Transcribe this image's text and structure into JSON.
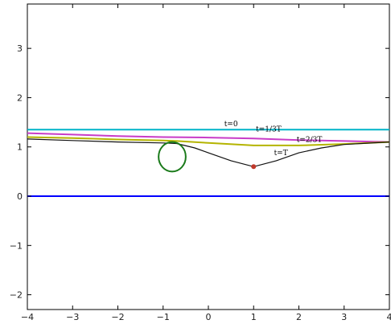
{
  "chart_data": {
    "type": "line",
    "title": "",
    "xlabel": "",
    "ylabel": "",
    "xlim": [
      -4,
      4
    ],
    "ylim": [
      -2.3,
      3.9
    ],
    "xticks": [
      -4,
      -3,
      -2,
      -1,
      0,
      1,
      2,
      3,
      4
    ],
    "yticks": [
      -2,
      -1,
      0,
      1,
      2,
      3
    ],
    "grid": false,
    "series": [
      {
        "label": "t=0",
        "color": "#00b4c8",
        "x": [
          -4,
          4
        ],
        "y": [
          1.35,
          1.35
        ]
      },
      {
        "label": "t=1/3T",
        "color": "#c83cc8",
        "x": [
          -4,
          -3,
          -2,
          -1,
          0,
          1,
          2,
          3,
          4
        ],
        "y": [
          1.28,
          1.25,
          1.22,
          1.2,
          1.19,
          1.17,
          1.14,
          1.12,
          1.1
        ]
      },
      {
        "label": "t=2/3T",
        "color": "#b4b400",
        "x": [
          -4,
          -3,
          -2,
          -1,
          -0.7,
          0,
          1,
          2,
          3,
          4
        ],
        "y": [
          1.2,
          1.18,
          1.15,
          1.13,
          1.12,
          1.08,
          1.03,
          1.03,
          1.06,
          1.1
        ]
      },
      {
        "label": "t=T",
        "color": "#111111",
        "x": [
          -4,
          -3,
          -2,
          -1,
          -0.7,
          -0.3,
          0,
          0.5,
          1,
          1.5,
          2,
          2.5,
          3,
          4
        ],
        "y": [
          1.16,
          1.13,
          1.1,
          1.08,
          1.07,
          0.98,
          0.88,
          0.72,
          0.6,
          0.72,
          0.88,
          0.98,
          1.05,
          1.1
        ]
      },
      {
        "label": "",
        "color": "#0000ff",
        "x": [
          -4,
          4
        ],
        "y": [
          0,
          0
        ]
      }
    ],
    "circle": {
      "cx": -0.8,
      "cy": 0.8,
      "r": 0.3,
      "color": "#1a7a1a"
    },
    "point": {
      "x": 1,
      "y": 0.6,
      "color": "#c0392b"
    },
    "curve_labels": [
      {
        "text": "t=0",
        "x": 0.35,
        "y": 1.42
      },
      {
        "text": "t=1/3T",
        "x": 1.05,
        "y": 1.31
      },
      {
        "text": "t=2/3T",
        "x": 1.95,
        "y": 1.1
      },
      {
        "text": "t=T",
        "x": 1.45,
        "y": 0.83
      }
    ]
  }
}
